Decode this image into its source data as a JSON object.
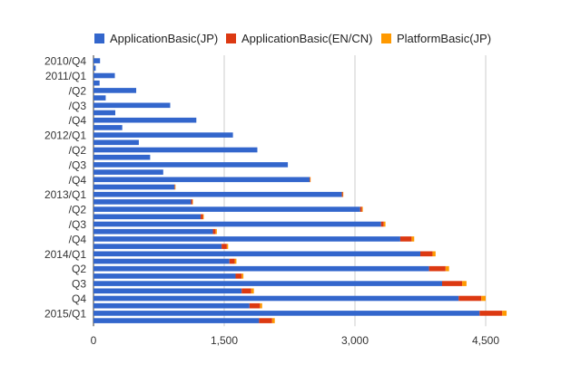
{
  "chart_data": {
    "type": "bar",
    "orientation": "horizontal",
    "stacked": true,
    "title": "",
    "xlabel": "",
    "ylabel": "",
    "xlim": [
      0,
      5000
    ],
    "x_ticks": [
      0,
      1500,
      3000,
      4500
    ],
    "x_tick_labels": [
      "0",
      "1,500",
      "3,000",
      "4,500"
    ],
    "grid": true,
    "legend_position": "top",
    "categories": [
      "2010/Q4",
      "",
      "2011/Q1",
      "",
      "/Q2",
      "",
      "/Q3",
      "",
      "/Q4",
      "",
      "2012/Q1",
      "",
      "/Q2",
      "",
      "/Q3",
      "",
      "/Q4",
      "",
      "2013/Q1",
      "",
      "/Q2",
      "",
      "/Q3",
      "",
      "/Q4",
      "",
      "2014/Q1",
      "",
      "Q2",
      "",
      "Q3",
      "",
      "Q4",
      "",
      "2015/Q1",
      ""
    ],
    "y_tick_labels": [
      "2010/Q4",
      "2011/Q1",
      "/Q2",
      "/Q3",
      "/Q4",
      "2012/Q1",
      "/Q2",
      "/Q3",
      "/Q4",
      "2013/Q1",
      "/Q2",
      "/Q3",
      "/Q4",
      "2014/Q1",
      "Q2",
      "Q3",
      "Q4",
      "2015/Q1"
    ],
    "series": [
      {
        "name": "ApplicationBasic(JP)",
        "color": "#3366cc",
        "values": [
          75,
          25,
          245,
          70,
          490,
          140,
          880,
          250,
          1180,
          330,
          1600,
          520,
          1880,
          650,
          2230,
          800,
          2480,
          930,
          2850,
          1120,
          3060,
          1230,
          3300,
          1370,
          3520,
          1470,
          3750,
          1560,
          3850,
          1630,
          4000,
          1700,
          4190,
          1790,
          4430,
          1900
        ]
      },
      {
        "name": "ApplicationBasic(EN/CN)",
        "color": "#dc3912",
        "values": [
          0,
          0,
          0,
          0,
          0,
          0,
          0,
          0,
          0,
          0,
          0,
          0,
          0,
          0,
          0,
          0,
          5,
          5,
          10,
          15,
          20,
          25,
          30,
          30,
          130,
          60,
          140,
          60,
          190,
          70,
          230,
          110,
          260,
          120,
          260,
          150
        ]
      },
      {
        "name": "PlatformBasic(JP)",
        "color": "#ff9900",
        "values": [
          0,
          0,
          0,
          0,
          0,
          0,
          0,
          0,
          0,
          0,
          0,
          0,
          0,
          0,
          0,
          0,
          5,
          5,
          5,
          5,
          10,
          10,
          20,
          15,
          30,
          15,
          35,
          20,
          40,
          20,
          50,
          30,
          50,
          25,
          50,
          30
        ]
      }
    ]
  }
}
